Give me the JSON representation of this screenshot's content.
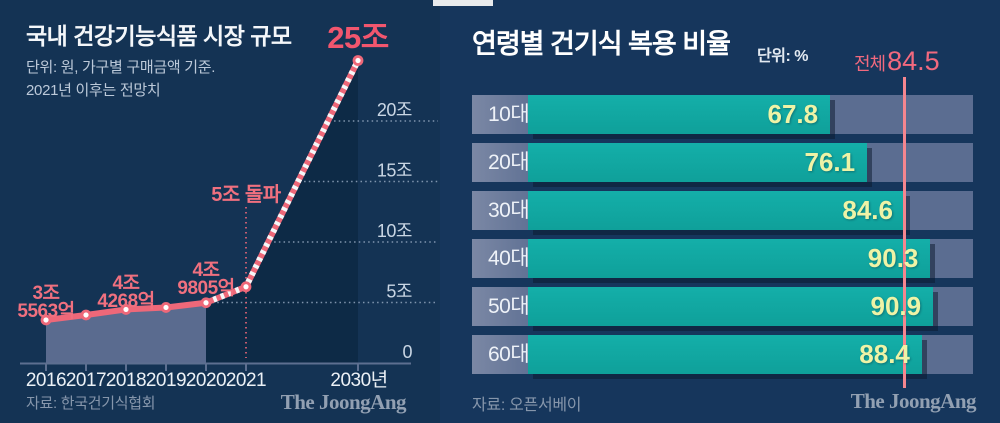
{
  "chart_data": [
    {
      "id": "market-size",
      "type": "line",
      "title": "국내 건강기능식품 시장 규모",
      "subtitle_line1": "단위: 원, 가구별 구매금액 기준.",
      "subtitle_line2": "2021년 이후는 전망치",
      "categories": [
        "2016",
        "2017",
        "2018",
        "2019",
        "2020",
        "2021",
        "2030년"
      ],
      "values": [
        3.5563,
        3.97,
        4.4268,
        4.59,
        4.9805,
        6.3,
        25
      ],
      "point_labels": [
        "3조\n5563억",
        "",
        "4조\n4268억",
        "",
        "4조\n9805억",
        "5조 돌파",
        "25조"
      ],
      "forecast_from_index": 4,
      "ylim": [
        0,
        25
      ],
      "yticks": [
        {
          "label": "0",
          "value": 0
        },
        {
          "label": "5조",
          "value": 5
        },
        {
          "label": "10조",
          "value": 10
        },
        {
          "label": "15조",
          "value": 15
        },
        {
          "label": "20조",
          "value": 20
        }
      ],
      "grid": "dotted",
      "source": "자료: 한국건기식협회",
      "logo": "The JoongAng"
    },
    {
      "id": "supplement-usage-by-age",
      "type": "bar",
      "title": "연령별 건기식 복용 비율",
      "unit_label": "단위: %",
      "categories": [
        "10대",
        "20대",
        "30대",
        "40대",
        "50대",
        "60대"
      ],
      "values": [
        67.8,
        76.1,
        84.6,
        90.3,
        90.9,
        88.4
      ],
      "overall": {
        "label": "전체",
        "value": "84.5"
      },
      "xlim": [
        0,
        100
      ],
      "legend": "none",
      "source": "자료: 오픈서베이",
      "logo": "The JoongAng"
    }
  ],
  "colors": {
    "left_background": "#143354",
    "right_background": "#16365C",
    "accent_pink": "#EE6879",
    "big_label_pink": "#F2566E",
    "overall_line_pink": "#F5868F",
    "bar_teal": "#10A7A1",
    "bar_value_text": "#EEF3A6",
    "track_slate": "#5B6D91",
    "actual_area_fill": "#5A6B8F",
    "forecast_area_fill": "#0D2A46",
    "grid_dot": "#93A7BE",
    "axis_slate": "#5D6F90"
  }
}
